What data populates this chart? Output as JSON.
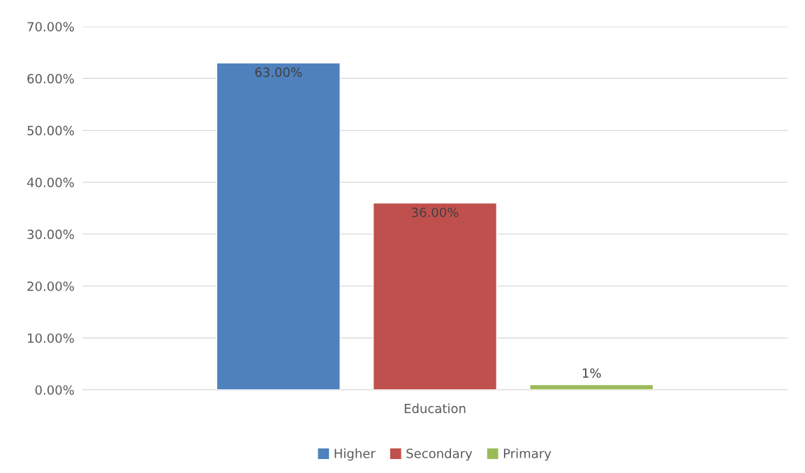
{
  "chart_data": {
    "type": "bar",
    "categories": [
      "Education"
    ],
    "series": [
      {
        "name": "Higher",
        "color": "#4f81bd",
        "values": [
          63
        ],
        "value_labels": [
          "63.00%"
        ]
      },
      {
        "name": "Secondary",
        "color": "#c0504d",
        "values": [
          36
        ],
        "value_labels": [
          "36.00%"
        ]
      },
      {
        "name": "Primary",
        "color": "#9bbb59",
        "values": [
          1
        ],
        "value_labels": [
          "1%"
        ]
      }
    ],
    "ylim": [
      0,
      70
    ],
    "yticks": [
      {
        "value": 0,
        "label": "0.00%"
      },
      {
        "value": 10,
        "label": "10.00%"
      },
      {
        "value": 20,
        "label": "20.00%"
      },
      {
        "value": 30,
        "label": "30.00%"
      },
      {
        "value": 40,
        "label": "40.00%"
      },
      {
        "value": 50,
        "label": "50.00%"
      },
      {
        "value": 60,
        "label": "60.00%"
      },
      {
        "value": 70,
        "label": "70.00%"
      }
    ],
    "grid": "y",
    "legend": "bottom"
  }
}
